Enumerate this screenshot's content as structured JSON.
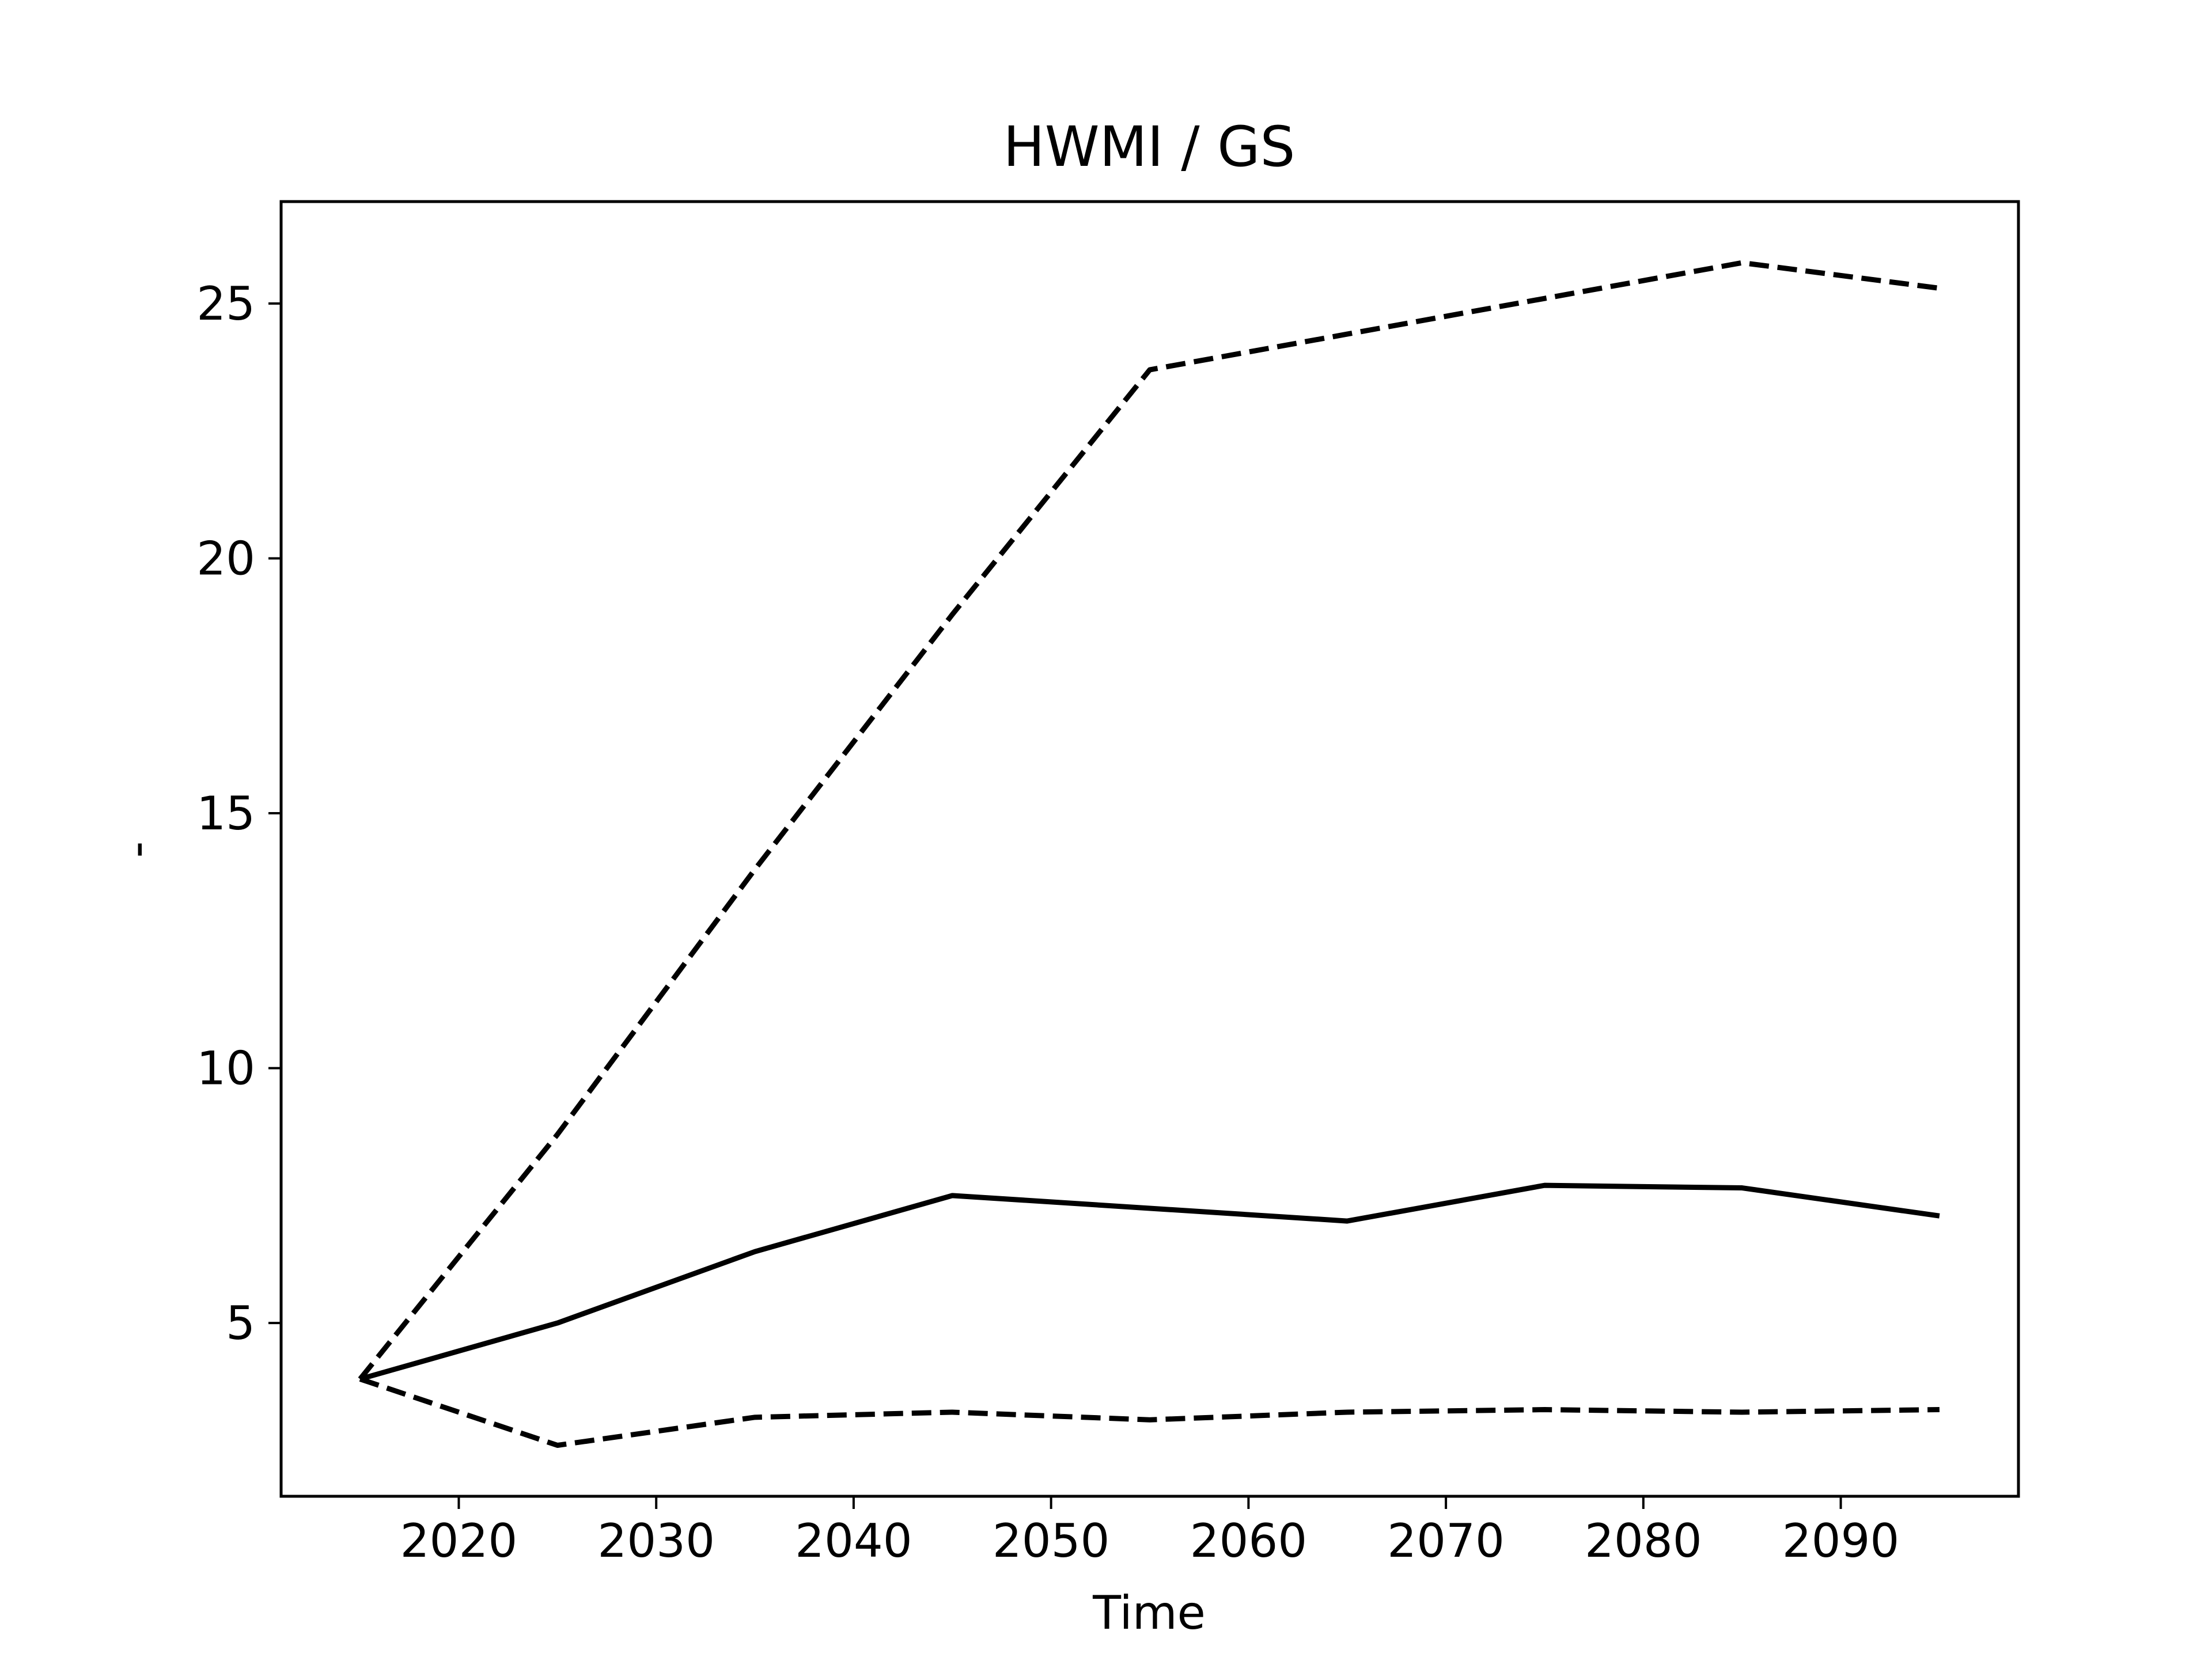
{
  "chart_data": {
    "type": "line",
    "title": "HWMI / GS",
    "xlabel": "Time",
    "ylabel": "-",
    "xlim": [
      2011,
      2099
    ],
    "ylim": [
      1.6,
      27.0
    ],
    "x_ticks": [
      2020,
      2030,
      2040,
      2050,
      2060,
      2070,
      2080,
      2090
    ],
    "y_ticks": [
      5,
      10,
      15,
      20,
      25
    ],
    "grid": false,
    "legend": "none",
    "x": [
      2015,
      2025,
      2035,
      2045,
      2055,
      2065,
      2075,
      2085,
      2095
    ],
    "series": [
      {
        "style": "dashed",
        "color": "#000000",
        "values": [
          3.9,
          8.7,
          13.9,
          18.9,
          23.7,
          24.4,
          25.1,
          25.8,
          25.3
        ]
      },
      {
        "style": "solid",
        "color": "#000000",
        "values": [
          3.9,
          5.0,
          6.4,
          7.5,
          7.25,
          7.0,
          7.7,
          7.65,
          7.1
        ]
      },
      {
        "style": "dashed",
        "color": "#000000",
        "values": [
          3.9,
          2.6,
          3.15,
          3.25,
          3.1,
          3.25,
          3.3,
          3.25,
          3.3
        ]
      }
    ]
  }
}
